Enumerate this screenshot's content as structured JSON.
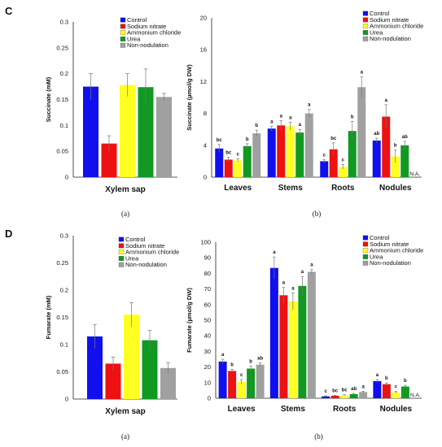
{
  "panel_labels": [
    "C",
    "D"
  ],
  "legend_entries": [
    "Control",
    "Sodium nitrate",
    "Ammonium chloride",
    "Urea",
    "Non-nodulation"
  ],
  "series_colors": [
    "#1010ee",
    "#ee1111",
    "#ffff22",
    "#119922",
    "#a0a0a0"
  ],
  "chart_data": [
    {
      "type": "bar",
      "panel": "C",
      "subfigure": "(a)",
      "ylabel": "Succinate (mM)",
      "xlabel": "Xylem sap",
      "ylim": [
        0,
        0.3
      ],
      "yticks": [
        "0",
        "0.05",
        "0.1",
        "0.15",
        "0.2",
        "0.25",
        "0.3"
      ],
      "ytick_values": [
        0,
        0.05,
        0.1,
        0.15,
        0.2,
        0.25,
        0.3
      ],
      "series": [
        {
          "name": "Control",
          "value": 0.175,
          "err": 0.025
        },
        {
          "name": "Sodium nitrate",
          "value": 0.065,
          "err": 0.015
        },
        {
          "name": "Ammonium chloride",
          "value": 0.178,
          "err": 0.022
        },
        {
          "name": "Urea",
          "value": 0.174,
          "err": 0.035
        },
        {
          "name": "Non-nodulation",
          "value": 0.155,
          "err": 0.007
        }
      ]
    },
    {
      "type": "bar",
      "panel": "C",
      "subfigure": "(b)",
      "ylabel": "Succinate (µmol/g DW)",
      "ylim": [
        0,
        20
      ],
      "yticks": [
        "0",
        "4",
        "8",
        "12",
        "16",
        "20"
      ],
      "ytick_values": [
        0,
        4,
        8,
        12,
        16,
        20
      ],
      "categories": [
        "Leaves",
        "Stems",
        "Roots",
        "Nodules"
      ],
      "series": [
        {
          "name": "Control",
          "values": [
            3.6,
            6.1,
            2.0,
            4.6
          ],
          "errors": [
            0.5,
            0.3,
            0.2,
            0.3
          ],
          "letters": [
            "bc",
            "a",
            "c",
            "ab"
          ]
        },
        {
          "name": "Sodium nitrate",
          "values": [
            2.2,
            6.5,
            3.5,
            7.6
          ],
          "errors": [
            0.3,
            0.6,
            0.8,
            1.5
          ],
          "letters": [
            "bc",
            "a",
            "bc",
            "a"
          ]
        },
        {
          "name": "Ammonium chloride",
          "values": [
            2.1,
            6.4,
            1.3,
            2.6
          ],
          "errors": [
            0.2,
            0.5,
            0.3,
            0.8
          ],
          "letters": [
            "c",
            "a",
            "c",
            "b"
          ]
        },
        {
          "name": "Urea",
          "values": [
            3.9,
            5.6,
            5.8,
            4.0
          ],
          "errors": [
            0.3,
            0.4,
            1.2,
            0.5
          ],
          "letters": [
            "b",
            "a",
            "b",
            "ab"
          ]
        },
        {
          "name": "Non-nodulation",
          "values": [
            5.5,
            8.0,
            11.3,
            null
          ],
          "errors": [
            0.4,
            0.5,
            1.3,
            null
          ],
          "letters": [
            "b",
            "a",
            "a",
            ""
          ]
        }
      ],
      "missing_label": "N.A."
    },
    {
      "type": "bar",
      "panel": "D",
      "subfigure": "(a)",
      "ylabel": "Fumarate (mM)",
      "xlabel": "Xylem sap",
      "ylim": [
        0,
        0.3
      ],
      "yticks": [
        "0",
        "0.05",
        "0.1",
        "0.15",
        "0.2",
        "0.25",
        "0.3"
      ],
      "ytick_values": [
        0,
        0.05,
        0.1,
        0.15,
        0.2,
        0.25,
        0.3
      ],
      "series": [
        {
          "name": "Control",
          "value": 0.115,
          "err": 0.022
        },
        {
          "name": "Sodium nitrate",
          "value": 0.065,
          "err": 0.012
        },
        {
          "name": "Ammonium chloride",
          "value": 0.155,
          "err": 0.022
        },
        {
          "name": "Urea",
          "value": 0.108,
          "err": 0.018
        },
        {
          "name": "Non-nodulation",
          "value": 0.057,
          "err": 0.01
        }
      ]
    },
    {
      "type": "bar",
      "panel": "D",
      "subfigure": "(b)",
      "ylabel": "Fumarate (µmol/g DW)",
      "ylim": [
        0,
        100
      ],
      "yticks": [
        "0",
        "10",
        "20",
        "30",
        "40",
        "50",
        "60",
        "70",
        "80",
        "90",
        "100"
      ],
      "ytick_values": [
        0,
        10,
        20,
        30,
        40,
        50,
        60,
        70,
        80,
        90,
        100
      ],
      "categories": [
        "Leaves",
        "Stems",
        "Roots",
        "Nodules"
      ],
      "series": [
        {
          "name": "Control",
          "values": [
            23.5,
            83.5,
            1.2,
            11.0
          ],
          "errors": [
            1.5,
            7.0,
            0.4,
            1.0
          ],
          "letters": [
            "a",
            "a",
            "c",
            "a"
          ]
        },
        {
          "name": "Sodium nitrate",
          "values": [
            17.5,
            66.0,
            1.6,
            9.0
          ],
          "errors": [
            1.0,
            5.0,
            0.3,
            0.8
          ],
          "letters": [
            "b",
            "a",
            "bc",
            "b"
          ]
        },
        {
          "name": "Ammonium chloride",
          "values": [
            10.5,
            62.0,
            2.0,
            3.8
          ],
          "errors": [
            1.5,
            5.5,
            0.3,
            0.6
          ],
          "letters": [
            "c",
            "a",
            "bc",
            "c"
          ]
        },
        {
          "name": "Urea",
          "values": [
            19.0,
            72.0,
            2.6,
            7.5
          ],
          "errors": [
            1.5,
            6.0,
            0.4,
            0.8
          ],
          "letters": [
            "b",
            "a",
            "ab",
            "b"
          ]
        },
        {
          "name": "Non-nodulation",
          "values": [
            21.5,
            81.0,
            4.0,
            null
          ],
          "errors": [
            1.2,
            1.5,
            0.5,
            null
          ],
          "letters": [
            "ab",
            "a",
            "a",
            ""
          ]
        }
      ],
      "missing_label": "N.A."
    }
  ]
}
